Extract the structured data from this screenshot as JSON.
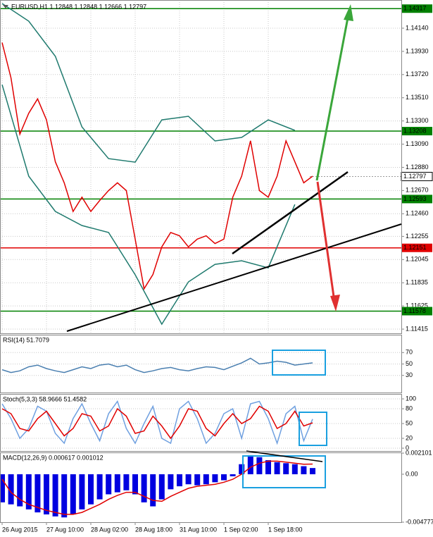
{
  "chart_data": [
    {
      "type": "line",
      "title": "EURUSD,H1  1.12848 1.12848 1.12666 1.12797",
      "x": [
        0,
        2,
        4,
        6,
        8,
        10,
        12,
        14,
        16,
        18,
        20,
        22,
        24,
        26,
        28,
        30,
        32,
        34,
        36,
        38,
        40,
        42,
        44,
        46,
        48,
        50,
        52,
        54,
        56,
        58,
        60,
        62,
        64,
        66,
        68,
        70
      ],
      "xlim": [
        0,
        90
      ],
      "xticks": [
        {
          "value": 0,
          "label": "26 Aug 2015"
        },
        {
          "value": 10,
          "label": "27 Aug 10:00"
        },
        {
          "value": 20,
          "label": "28 Aug 02:00"
        },
        {
          "value": 30,
          "label": "28 Aug 18:00"
        },
        {
          "value": 40,
          "label": "31 Aug 10:00"
        },
        {
          "value": 50,
          "label": "1 Sep 02:00"
        },
        {
          "value": 60,
          "label": "1 Sep 18:00"
        }
      ],
      "ylim": [
        1.11377,
        1.14376
      ],
      "yticks": [
        {
          "value": 1.1414,
          "label": "1.14140"
        },
        {
          "value": 1.1393,
          "label": "1.13930"
        },
        {
          "value": 1.1372,
          "label": "1.13720"
        },
        {
          "value": 1.1351,
          "label": "1.13510"
        },
        {
          "value": 1.133,
          "label": "1.13300"
        },
        {
          "value": 1.1309,
          "label": "1.13090"
        },
        {
          "value": 1.1288,
          "label": "1.12880"
        },
        {
          "value": 1.1267,
          "label": "1.12670"
        },
        {
          "value": 1.1246,
          "label": "1.12460"
        },
        1.12255,
        1.12045,
        1.11835,
        1.11625,
        1.11415
      ],
      "grid": true,
      "levels": [
        {
          "value": 1.14317,
          "color": "#008000"
        },
        {
          "value": 1.13208,
          "color": "#008000"
        },
        {
          "value": 1.12593,
          "color": "#008000"
        },
        {
          "value": 1.12151,
          "color": "#e00000"
        },
        {
          "value": 1.11578,
          "color": "#008000"
        }
      ],
      "last": 1.12797,
      "series": [
        {
          "color": "#1f7a6e",
          "x": [
            0,
            6,
            12,
            18,
            24,
            30,
            36,
            42,
            48,
            54,
            60,
            66
          ],
          "values": [
            1.14363,
            1.14204,
            1.13885,
            1.13246,
            1.12959,
            1.12927,
            1.1331,
            1.13342,
            1.13119,
            1.13151,
            1.1331,
            1.13215
          ]
        },
        {
          "color": "#1f7a6e",
          "x": [
            0,
            6,
            12,
            18,
            24,
            30,
            36,
            42,
            48,
            54,
            60,
            66
          ],
          "values": [
            1.13629,
            1.128,
            1.12481,
            1.12353,
            1.1229,
            1.11907,
            1.1146,
            1.11843,
            1.12002,
            1.12034,
            1.1197,
            1.12544
          ]
        },
        {
          "color": "#e00000",
          "values": [
            1.1401,
            1.1369,
            1.1318,
            1.1337,
            1.135,
            1.1331,
            1.1293,
            1.1274,
            1.1248,
            1.1261,
            1.1248,
            1.1258,
            1.1267,
            1.1274,
            1.1267,
            1.1223,
            1.1178,
            1.1191,
            1.1216,
            1.1229,
            1.1226,
            1.1216,
            1.1223,
            1.1226,
            1.1219,
            1.1223,
            1.1261,
            1.128,
            1.1312,
            1.1267,
            1.1261,
            1.128,
            1.1312,
            1.1293,
            1.1274,
            1.128
          ]
        }
      ]
    },
    {
      "type": "line",
      "title": "RSI(14) 51.7079",
      "ylim": [
        0,
        100
      ],
      "yticks": [
        70,
        50,
        30
      ],
      "grid": true,
      "series": [
        {
          "color": "#4a7fb0",
          "values": [
            40,
            35,
            38,
            45,
            48,
            42,
            38,
            35,
            40,
            45,
            42,
            48,
            50,
            45,
            48,
            40,
            35,
            38,
            42,
            44,
            40,
            38,
            42,
            45,
            44,
            40,
            46,
            52,
            60,
            50,
            52,
            55,
            53,
            48,
            50,
            52
          ]
        }
      ]
    },
    {
      "type": "line",
      "title": "Stoch(5,3,3) 58.9666 51.4582",
      "ylim": [
        -5.7,
        108.6
      ],
      "yticks": [
        100,
        80,
        50,
        20,
        0
      ],
      "grid": true,
      "series": [
        {
          "color": "#6fa0e0",
          "values": [
            90,
            60,
            20,
            40,
            85,
            75,
            30,
            10,
            60,
            90,
            50,
            15,
            70,
            95,
            40,
            10,
            50,
            85,
            20,
            10,
            80,
            95,
            60,
            10,
            30,
            70,
            80,
            20,
            90,
            95,
            60,
            10,
            70,
            85,
            15,
            58.97
          ]
        },
        {
          "color": "#e00000",
          "values": [
            80,
            70,
            40,
            35,
            60,
            75,
            50,
            25,
            40,
            70,
            65,
            35,
            45,
            80,
            65,
            30,
            35,
            65,
            45,
            20,
            45,
            80,
            75,
            40,
            25,
            50,
            70,
            50,
            60,
            85,
            75,
            40,
            50,
            75,
            45,
            51.46
          ]
        }
      ]
    },
    {
      "type": "bar",
      "title": "MACD(12,26,9) 0.000617 0.001012",
      "ylim": [
        -0.004777,
        0.002101
      ],
      "yticks": [
        0.002101,
        {
          "value": 0,
          "label": "0.00"
        },
        -0.004777
      ],
      "grid": false,
      "series": [
        {
          "type": "bar",
          "color": "#0000e0",
          "values": [
            -0.0028,
            -0.003,
            -0.0032,
            -0.0035,
            -0.0038,
            -0.004,
            -0.0042,
            -0.0043,
            -0.004,
            -0.0035,
            -0.003,
            -0.0025,
            -0.002,
            -0.0018,
            -0.0016,
            -0.002,
            -0.0028,
            -0.0032,
            -0.0025,
            -0.0015,
            -0.0012,
            -0.001,
            -0.0011,
            -0.001,
            -0.0008,
            -0.0006,
            -0.0002,
            0.001,
            0.0019,
            0.0017,
            0.0014,
            0.0012,
            0.0011,
            0.001,
            0.0008,
            0.000617
          ]
        },
        {
          "type": "line",
          "color": "#e00000",
          "values": [
            -0.0005,
            -0.0018,
            -0.0025,
            -0.003,
            -0.0033,
            -0.0036,
            -0.0038,
            -0.004,
            -0.004,
            -0.0038,
            -0.0034,
            -0.003,
            -0.0025,
            -0.0021,
            -0.0018,
            -0.0018,
            -0.0022,
            -0.0026,
            -0.0027,
            -0.0022,
            -0.0018,
            -0.0014,
            -0.0012,
            -0.0011,
            -0.001,
            -0.0008,
            -0.0005,
            0,
            0.0007,
            0.0011,
            0.0013,
            0.0013,
            0.0012,
            0.0011,
            0.001,
            0.001012
          ]
        }
      ]
    }
  ]
}
